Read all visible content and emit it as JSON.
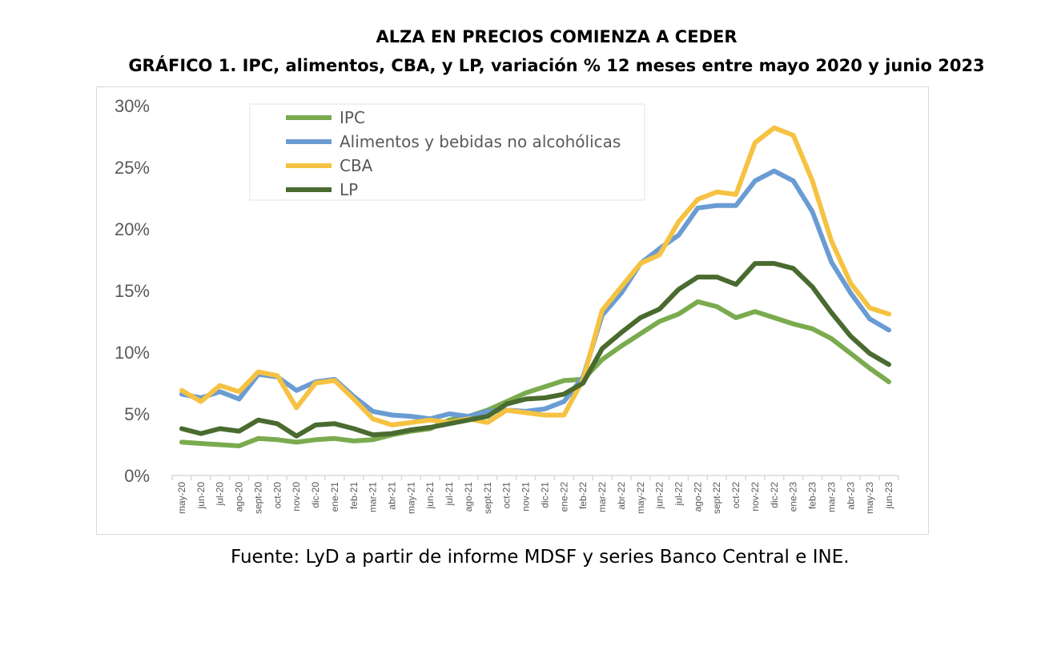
{
  "chart_data": {
    "type": "line",
    "title": "ALZA EN PRECIOS COMIENZA A CEDER",
    "subtitle": "GRÁFICO 1. IPC, alimentos, CBA, y LP, variación % 12 meses entre mayo 2020 y junio 2023",
    "source": "Fuente: LyD a partir de informe MDSF y series Banco Central e INE.",
    "xlabel": "",
    "ylabel": "",
    "ylim": [
      0,
      30
    ],
    "yticks": [
      "0%",
      "5%",
      "10%",
      "15%",
      "20%",
      "25%",
      "30%"
    ],
    "grid": false,
    "legend_position": "top-left",
    "categories": [
      "may-20",
      "jun-20",
      "jul-20",
      "ago-20",
      "sept-20",
      "oct-20",
      "nov-20",
      "dic-20",
      "ene-21",
      "feb-21",
      "mar-21",
      "abr-21",
      "may-21",
      "jun-21",
      "jul-21",
      "ago-21",
      "sept-21",
      "oct-21",
      "nov-21",
      "dic-21",
      "ene-22",
      "feb-22",
      "mar-22",
      "abr-22",
      "may-22",
      "jun-22",
      "jul-22",
      "ago-22",
      "sept-22",
      "oct-22",
      "nov-22",
      "dic-22",
      "ene-23",
      "feb-23",
      "mar-23",
      "abr-23",
      "may-23",
      "jun-23"
    ],
    "series": [
      {
        "name": "IPC",
        "color": "#7aab4f",
        "values": [
          2.7,
          2.6,
          2.5,
          2.4,
          3.0,
          2.9,
          2.7,
          2.9,
          3.0,
          2.8,
          2.9,
          3.3,
          3.6,
          3.8,
          4.5,
          4.8,
          5.3,
          6.0,
          6.7,
          7.2,
          7.7,
          7.8,
          9.4,
          10.5,
          11.5,
          12.5,
          13.1,
          14.1,
          13.7,
          12.8,
          13.3,
          12.8,
          12.3,
          11.9,
          11.1,
          9.9,
          8.7,
          7.6
        ]
      },
      {
        "name": "Alimentos y bebidas no alcohólicas",
        "color": "#6a9cd3",
        "values": [
          6.6,
          6.3,
          6.8,
          6.2,
          8.2,
          8.0,
          6.9,
          7.6,
          7.8,
          6.4,
          5.2,
          4.9,
          4.8,
          4.6,
          5.0,
          4.8,
          5.2,
          5.3,
          5.2,
          5.4,
          6.0,
          8.0,
          13.0,
          14.8,
          17.2,
          18.4,
          19.5,
          21.7,
          21.9,
          21.9,
          23.9,
          24.7,
          23.9,
          21.4,
          17.3,
          14.8,
          12.7,
          11.8
        ]
      },
      {
        "name": "CBA",
        "color": "#f5c242",
        "values": [
          6.9,
          6.0,
          7.3,
          6.8,
          8.4,
          8.1,
          5.5,
          7.5,
          7.7,
          6.2,
          4.6,
          4.1,
          4.3,
          4.5,
          4.3,
          4.6,
          4.3,
          5.3,
          5.1,
          4.9,
          4.9,
          7.8,
          13.4,
          15.3,
          17.2,
          17.9,
          20.6,
          22.4,
          23.0,
          22.8,
          27.0,
          28.2,
          27.6,
          23.9,
          19.0,
          15.6,
          13.6,
          13.1
        ]
      },
      {
        "name": "LP",
        "color": "#4a6b2f",
        "values": [
          3.8,
          3.4,
          3.8,
          3.6,
          4.5,
          4.2,
          3.2,
          4.1,
          4.2,
          3.8,
          3.3,
          3.4,
          3.7,
          3.9,
          4.2,
          4.5,
          4.8,
          5.8,
          6.2,
          6.3,
          6.6,
          7.5,
          10.3,
          11.6,
          12.8,
          13.5,
          15.1,
          16.1,
          16.1,
          15.5,
          17.2,
          17.2,
          16.8,
          15.3,
          13.2,
          11.3,
          9.9,
          9.0
        ]
      }
    ]
  }
}
